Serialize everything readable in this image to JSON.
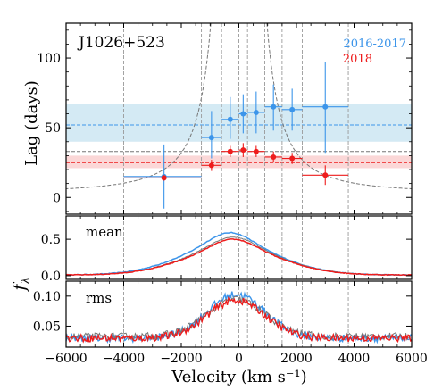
{
  "figure": {
    "object_name": "J1026+523",
    "legend": [
      {
        "label": "2016-2017",
        "color": "#3c95ea"
      },
      {
        "label": "2018",
        "color": "#ee1c1c"
      }
    ],
    "colors": {
      "blue": "#3c95ea",
      "red": "#ee1c1c",
      "gray": "#777777",
      "blue_band": "#d4eaf4",
      "red_band": "#fbd7d7"
    }
  },
  "chart_data": [
    {
      "type": "scatter",
      "panel": "top",
      "ylabel": "Lag (days)",
      "xlim": [
        -6000,
        6000
      ],
      "ylim": [
        -12,
        125
      ],
      "yticks": [
        0,
        50,
        100
      ],
      "bin_edges": [
        -4000,
        -1300,
        -600,
        0,
        300,
        900,
        1500,
        2200,
        3800
      ],
      "series": [
        {
          "name": "2016-2017",
          "color": "#3c95ea",
          "mean_lag": 52,
          "band": [
            40,
            67
          ],
          "points": [
            {
              "x": -2600,
              "y": 15,
              "xlo": -4000,
              "xhi": -1300,
              "ylo": -8,
              "yhi": 38
            },
            {
              "x": -950,
              "y": 43,
              "xlo": -1300,
              "xhi": -600,
              "ylo": 28,
              "yhi": 62
            },
            {
              "x": -300,
              "y": 56,
              "xlo": -600,
              "xhi": 0,
              "ylo": 42,
              "yhi": 72
            },
            {
              "x": 150,
              "y": 60,
              "xlo": 0,
              "xhi": 300,
              "ylo": 46,
              "yhi": 74
            },
            {
              "x": 600,
              "y": 61,
              "xlo": 300,
              "xhi": 900,
              "ylo": 46,
              "yhi": 76
            },
            {
              "x": 1200,
              "y": 65,
              "xlo": 900,
              "xhi": 1500,
              "ylo": 48,
              "yhi": 81
            },
            {
              "x": 1850,
              "y": 63,
              "xlo": 1500,
              "xhi": 2200,
              "ylo": 48,
              "yhi": 78
            },
            {
              "x": 3000,
              "y": 65,
              "xlo": 2200,
              "xhi": 3800,
              "ylo": 32,
              "yhi": 97
            }
          ]
        },
        {
          "name": "2018",
          "color": "#ee1c1c",
          "mean_lag": 25,
          "band": [
            21,
            30
          ],
          "points": [
            {
              "x": -2600,
              "y": 14,
              "xlo": -4000,
              "xhi": -1300,
              "ylo": 12,
              "yhi": 16
            },
            {
              "x": -950,
              "y": 23,
              "xlo": -1300,
              "xhi": -600,
              "ylo": 19,
              "yhi": 27
            },
            {
              "x": -300,
              "y": 33,
              "xlo": -600,
              "xhi": 0,
              "ylo": 29,
              "yhi": 37
            },
            {
              "x": 150,
              "y": 34,
              "xlo": 0,
              "xhi": 300,
              "ylo": 29,
              "yhi": 39
            },
            {
              "x": 600,
              "y": 33,
              "xlo": 300,
              "xhi": 900,
              "ylo": 29,
              "yhi": 37
            },
            {
              "x": 1200,
              "y": 29,
              "xlo": 900,
              "xhi": 1500,
              "ylo": 25,
              "yhi": 33
            },
            {
              "x": 1850,
              "y": 28,
              "xlo": 1500,
              "xhi": 2200,
              "ylo": 24,
              "yhi": 32
            },
            {
              "x": 3000,
              "y": 16,
              "xlo": 2200,
              "xhi": 3800,
              "ylo": 9,
              "yhi": 23
            }
          ]
        }
      ],
      "reference_lines": [
        {
          "name": "gray-dashed-lag",
          "color": "#777777",
          "y": 33
        },
        {
          "name": "virial-envelope",
          "color": "#777777",
          "form": "y = k / v^2",
          "k_at_1000": 116,
          "floor": 3
        }
      ]
    },
    {
      "type": "line",
      "panel": "middle",
      "label": "mean",
      "ylim": [
        -0.05,
        0.82
      ],
      "yticks": [
        0.0,
        0.5
      ],
      "ytick_labels": [
        "0.0",
        "0.5"
      ],
      "series": [
        {
          "color": "#3c95ea",
          "peak": 0.58,
          "center": -300
        },
        {
          "color": "#777777",
          "peak": 0.52,
          "center": -200
        },
        {
          "color": "#ee1c1c",
          "peak": 0.49,
          "center": -200
        }
      ]
    },
    {
      "type": "line",
      "panel": "bottom",
      "label": "rms",
      "xlabel": "Velocity (km s⁻¹)",
      "xlim": [
        -6000,
        6000
      ],
      "xticks": [
        -6000,
        -4000,
        -2000,
        0,
        2000,
        4000,
        6000
      ],
      "xtick_labels": [
        "−6000",
        "−4000",
        "−2000",
        "0",
        "2000",
        "4000",
        "6000"
      ],
      "ylim": [
        0.015,
        0.125
      ],
      "yticks": [
        0.05,
        0.1
      ],
      "ytick_labels": [
        "0.05",
        "0.10"
      ],
      "series": [
        {
          "color": "#3c95ea",
          "peak": 0.103,
          "base": 0.03
        },
        {
          "color": "#777777",
          "peak": 0.095,
          "base": 0.033
        },
        {
          "color": "#ee1c1c",
          "peak": 0.093,
          "base": 0.03
        }
      ]
    }
  ],
  "shared": {
    "ylabel_lower": "f",
    "ylabel_lower_sub": "λ"
  }
}
